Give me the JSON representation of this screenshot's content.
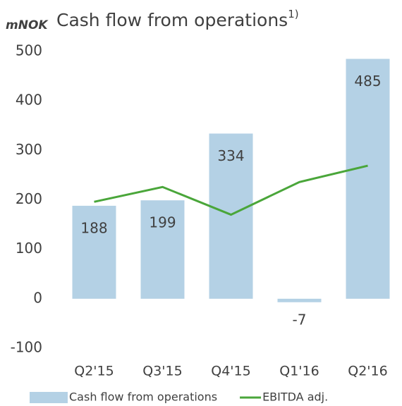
{
  "chart_data": {
    "type": "bar",
    "title": "Cash flow from operations",
    "title_note": "1)",
    "y_unit": "mNOK",
    "categories": [
      "Q2'15",
      "Q3'15",
      "Q4'15",
      "Q1'16",
      "Q2'16"
    ],
    "series": [
      {
        "name": "Cash flow from operations",
        "color": "#b4d1e5",
        "values": [
          188,
          199,
          334,
          -7,
          485
        ]
      },
      {
        "name": "EBITDA adj.",
        "color": "#4aa63a",
        "type": "line",
        "values": [
          196,
          226,
          170,
          236,
          269
        ]
      }
    ],
    "ylim": [
      -100,
      500
    ],
    "yticks": [
      -100,
      0,
      100,
      200,
      300,
      400,
      500
    ],
    "grid": false,
    "legend": "bottom"
  }
}
